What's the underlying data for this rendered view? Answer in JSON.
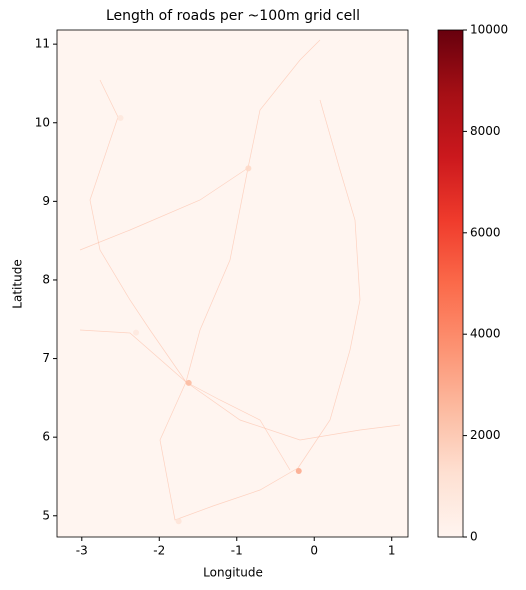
{
  "chart_data": {
    "type": "heatmap",
    "title": "Length of roads per ~100m grid cell",
    "x_label": "Longitude",
    "y_label": "Latitude",
    "xlim": [
      -3.32,
      1.21
    ],
    "ylim": [
      4.73,
      11.18
    ],
    "xticks": [
      -3,
      -2,
      -1,
      0,
      1
    ],
    "yticks": [
      5,
      6,
      7,
      8,
      9,
      10,
      11
    ],
    "clim": [
      0,
      10000
    ],
    "cticks": [
      0,
      2000,
      4000,
      6000,
      8000,
      10000
    ],
    "colormap": [
      "#fff5f0",
      "#fee0d2",
      "#fcbba1",
      "#fc9272",
      "#fb6a4a",
      "#ef3b2c",
      "#cb181d",
      "#a50f15",
      "#67000d"
    ],
    "hotspots": {
      "x": [
        -0.2,
        -1.62,
        -0.85,
        -2.5,
        -1.75,
        -2.3
      ],
      "y": [
        5.57,
        6.69,
        9.42,
        10.06,
        4.93,
        7.33
      ],
      "values": [
        3000,
        2500,
        1500,
        800,
        1000,
        700
      ]
    }
  }
}
